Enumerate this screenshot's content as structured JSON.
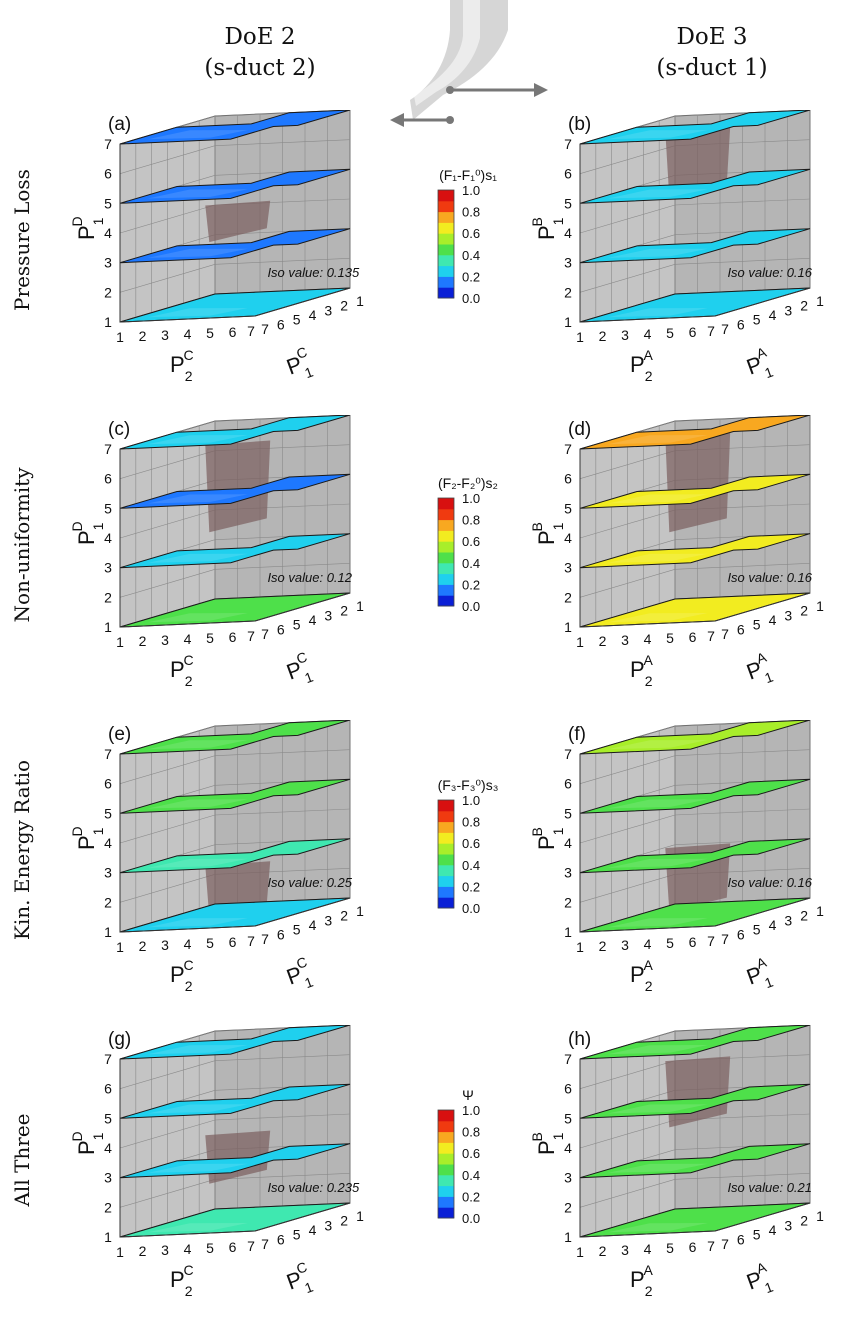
{
  "columns": [
    {
      "title": "DoE 2",
      "subtitle": "(s-duct 2)"
    },
    {
      "title": "DoE 3",
      "subtitle": "(s-duct 1)"
    }
  ],
  "rows": [
    {
      "label": "Pressure Loss",
      "colorbar": {
        "title": "(F₁-F₁⁰)s₁",
        "ticks": [
          "1.0",
          "0.8",
          "0.6",
          "0.4",
          "0.2",
          "0.0"
        ]
      }
    },
    {
      "label": "Non-uniformity",
      "colorbar": {
        "title": "(F₂-F₂⁰)s₂",
        "ticks": [
          "1.0",
          "0.8",
          "0.6",
          "0.4",
          "0.2",
          "0.0"
        ]
      }
    },
    {
      "label": "Kin. Energy Ratio",
      "colorbar": {
        "title": "(F₃-F₃⁰)s₃",
        "ticks": [
          "1.0",
          "0.8",
          "0.6",
          "0.4",
          "0.2",
          "0.0"
        ]
      }
    },
    {
      "label": "All Three",
      "colorbar": {
        "title": "Ψ",
        "ticks": [
          "1.0",
          "0.8",
          "0.6",
          "0.4",
          "0.2",
          "0.0"
        ]
      }
    }
  ],
  "colors": {
    "cmap": [
      "#0a1fd6",
      "#1e78ff",
      "#1fd0ee",
      "#3fe8b0",
      "#4ee04a",
      "#a8ee2a",
      "#f2ec20",
      "#f8a820",
      "#f03a10",
      "#d81010"
    ],
    "wall": "#c4c4c4",
    "iso": "#7a5e5e"
  },
  "chart_data": [
    {
      "type": "3d-slices",
      "panel": "(a)",
      "vertical_axis": {
        "base": "P",
        "sub": "1",
        "sup": "D"
      },
      "front_axis": {
        "base": "P",
        "sub": "2",
        "sup": "C"
      },
      "side_axis": {
        "base": "P",
        "sub": "1",
        "sup": "C"
      },
      "z_ticks": [
        "1",
        "2",
        "3",
        "4",
        "5",
        "6",
        "7"
      ],
      "front_ticks": [
        "1",
        "2",
        "3",
        "4",
        "5",
        "6",
        "7"
      ],
      "side_ticks": [
        "7",
        "6",
        "5",
        "4",
        "3",
        "2",
        "1"
      ],
      "iso_label": "Iso value: 0.135",
      "slice_levels": [
        1,
        3,
        5,
        7
      ],
      "slice_colors": [
        "#1fd0ee",
        "#1e78ff",
        "#1e78ff",
        "#1e78ff"
      ],
      "isosurface_z": [
        4.3,
        3.5
      ]
    },
    {
      "type": "3d-slices",
      "panel": "(b)",
      "vertical_axis": {
        "base": "P",
        "sub": "1",
        "sup": "B"
      },
      "front_axis": {
        "base": "P",
        "sub": "2",
        "sup": "A"
      },
      "side_axis": {
        "base": "P",
        "sub": "1",
        "sup": "A"
      },
      "z_ticks": [
        "1",
        "2",
        "3",
        "4",
        "5",
        "6",
        "7"
      ],
      "front_ticks": [
        "1",
        "2",
        "3",
        "4",
        "5",
        "6",
        "7"
      ],
      "side_ticks": [
        "7",
        "6",
        "5",
        "4",
        "3",
        "2",
        "1"
      ],
      "iso_label": "Iso value: 0.16",
      "slice_levels": [
        1,
        3,
        5,
        7
      ],
      "slice_colors": [
        "#1fd0ee",
        "#1fd0ee",
        "#1fd0ee",
        "#1fd0ee"
      ],
      "isosurface_z": [
        6.8,
        5.0
      ]
    },
    {
      "type": "3d-slices",
      "panel": "(c)",
      "vertical_axis": {
        "base": "P",
        "sub": "1",
        "sup": "D"
      },
      "front_axis": {
        "base": "P",
        "sub": "2",
        "sup": "C"
      },
      "side_axis": {
        "base": "P",
        "sub": "1",
        "sup": "C"
      },
      "z_ticks": [
        "1",
        "2",
        "3",
        "4",
        "5",
        "6",
        "7"
      ],
      "front_ticks": [
        "1",
        "2",
        "3",
        "4",
        "5",
        "6",
        "7"
      ],
      "side_ticks": [
        "7",
        "6",
        "5",
        "4",
        "3",
        "2",
        "1"
      ],
      "iso_label": "Iso value: 0.12",
      "slice_levels": [
        1,
        3,
        5,
        7
      ],
      "slice_colors": [
        "#4ee04a",
        "#1fd0ee",
        "#1e78ff",
        "#1fd0ee"
      ],
      "isosurface_z": [
        6.5,
        4.0
      ]
    },
    {
      "type": "3d-slices",
      "panel": "(d)",
      "vertical_axis": {
        "base": "P",
        "sub": "1",
        "sup": "B"
      },
      "front_axis": {
        "base": "P",
        "sub": "2",
        "sup": "A"
      },
      "side_axis": {
        "base": "P",
        "sub": "1",
        "sup": "A"
      },
      "z_ticks": [
        "1",
        "2",
        "3",
        "4",
        "5",
        "6",
        "7"
      ],
      "front_ticks": [
        "1",
        "2",
        "3",
        "4",
        "5",
        "6",
        "7"
      ],
      "side_ticks": [
        "7",
        "6",
        "5",
        "4",
        "3",
        "2",
        "1"
      ],
      "iso_label": "Iso value: 0.16",
      "slice_levels": [
        1,
        3,
        5,
        7
      ],
      "slice_colors": [
        "#f2ec20",
        "#f2ec20",
        "#f2ec20",
        "#f8a820"
      ],
      "isosurface_z": [
        6.8,
        4.0
      ]
    },
    {
      "type": "3d-slices",
      "panel": "(e)",
      "vertical_axis": {
        "base": "P",
        "sub": "1",
        "sup": "D"
      },
      "front_axis": {
        "base": "P",
        "sub": "2",
        "sup": "C"
      },
      "side_axis": {
        "base": "P",
        "sub": "1",
        "sup": "C"
      },
      "z_ticks": [
        "1",
        "2",
        "3",
        "4",
        "5",
        "6",
        "7"
      ],
      "front_ticks": [
        "1",
        "2",
        "3",
        "4",
        "5",
        "6",
        "7"
      ],
      "side_ticks": [
        "7",
        "6",
        "5",
        "4",
        "3",
        "2",
        "1"
      ],
      "iso_label": "Iso value: 0.25",
      "slice_levels": [
        1,
        3,
        5,
        7
      ],
      "slice_colors": [
        "#1fd0ee",
        "#3fe8b0",
        "#4ee04a",
        "#4ee04a"
      ],
      "isosurface_z": [
        2.6,
        1.3
      ]
    },
    {
      "type": "3d-slices",
      "panel": "(f)",
      "vertical_axis": {
        "base": "P",
        "sub": "1",
        "sup": "B"
      },
      "front_axis": {
        "base": "P",
        "sub": "2",
        "sup": "A"
      },
      "side_axis": {
        "base": "P",
        "sub": "1",
        "sup": "A"
      },
      "z_ticks": [
        "1",
        "2",
        "3",
        "4",
        "5",
        "6",
        "7"
      ],
      "front_ticks": [
        "1",
        "2",
        "3",
        "4",
        "5",
        "6",
        "7"
      ],
      "side_ticks": [
        "7",
        "6",
        "5",
        "4",
        "3",
        "2",
        "1"
      ],
      "iso_label": "Iso value: 0.16",
      "slice_levels": [
        1,
        3,
        5,
        7
      ],
      "slice_colors": [
        "#4ee04a",
        "#4ee04a",
        "#4ee04a",
        "#a8ee2a"
      ],
      "isosurface_z": [
        3.2,
        1.5
      ]
    },
    {
      "type": "3d-slices",
      "panel": "(g)",
      "vertical_axis": {
        "base": "P",
        "sub": "1",
        "sup": "D"
      },
      "front_axis": {
        "base": "P",
        "sub": "2",
        "sup": "C"
      },
      "side_axis": {
        "base": "P",
        "sub": "1",
        "sup": "C"
      },
      "z_ticks": [
        "1",
        "2",
        "3",
        "4",
        "5",
        "6",
        "7"
      ],
      "front_ticks": [
        "1",
        "2",
        "3",
        "4",
        "5",
        "6",
        "7"
      ],
      "side_ticks": [
        "7",
        "6",
        "5",
        "4",
        "3",
        "2",
        "1"
      ],
      "iso_label": "Iso value: 0.235",
      "slice_levels": [
        1,
        3,
        5,
        7
      ],
      "slice_colors": [
        "#3fe8b0",
        "#1fd0ee",
        "#1fd0ee",
        "#1fd0ee"
      ],
      "isosurface_z": [
        3.8,
        2.6
      ]
    },
    {
      "type": "3d-slices",
      "panel": "(h)",
      "vertical_axis": {
        "base": "P",
        "sub": "1",
        "sup": "B"
      },
      "front_axis": {
        "base": "P",
        "sub": "2",
        "sup": "A"
      },
      "side_axis": {
        "base": "P",
        "sub": "1",
        "sup": "A"
      },
      "z_ticks": [
        "1",
        "2",
        "3",
        "4",
        "5",
        "6",
        "7"
      ],
      "front_ticks": [
        "1",
        "2",
        "3",
        "4",
        "5",
        "6",
        "7"
      ],
      "side_ticks": [
        "7",
        "6",
        "5",
        "4",
        "3",
        "2",
        "1"
      ],
      "iso_label": "Iso value: 0.21",
      "slice_levels": [
        1,
        3,
        5,
        7
      ],
      "slice_colors": [
        "#4ee04a",
        "#4ee04a",
        "#4ee04a",
        "#4ee04a"
      ],
      "isosurface_z": [
        6.3,
        4.5
      ]
    }
  ]
}
